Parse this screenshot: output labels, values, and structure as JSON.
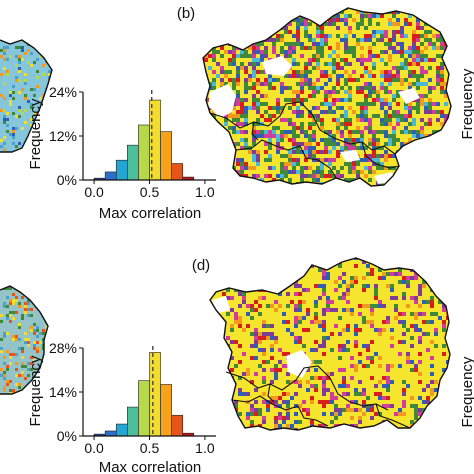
{
  "panels": [
    {
      "label": "(b)"
    },
    {
      "label": "(d)"
    }
  ],
  "edge_text": {
    "right_ylabel": "Frequency"
  },
  "chart_data": [
    {
      "type": "bar",
      "panel": "(b)",
      "xlabel": "Max correlation",
      "ylabel": "Frequency",
      "x_ticks": [
        "0.0",
        "0.5",
        "1.0"
      ],
      "y_ticks": [
        "0%",
        "12%",
        "24%"
      ],
      "xlim": [
        -0.1,
        1.1
      ],
      "ylim": [
        0,
        24
      ],
      "bin_width": 0.1,
      "bins": [
        0.0,
        0.1,
        0.2,
        0.3,
        0.4,
        0.5,
        0.6,
        0.7,
        0.8
      ],
      "values": [
        0.5,
        2.2,
        5.4,
        9.5,
        15.0,
        21.8,
        13.2,
        4.5,
        0.8
      ],
      "mean_line": 0.52,
      "grid": false,
      "colors": [
        "#2a3d8f",
        "#2a6fc9",
        "#23a6d4",
        "#4dbf9a",
        "#b5d94a",
        "#f2dd2f",
        "#f7a21b",
        "#e4541b",
        "#b8161b"
      ]
    },
    {
      "type": "bar",
      "panel": "(d)",
      "xlabel": "Max correlation",
      "ylabel": "Frequency",
      "x_ticks": [
        "0.0",
        "0.5",
        "1.0"
      ],
      "y_ticks": [
        "0%",
        "14%",
        "28%"
      ],
      "xlim": [
        -0.1,
        1.1
      ],
      "ylim": [
        0,
        28
      ],
      "bin_width": 0.1,
      "bins": [
        0.0,
        0.1,
        0.2,
        0.3,
        0.4,
        0.5,
        0.6,
        0.7,
        0.8
      ],
      "values": [
        0.6,
        1.6,
        3.8,
        9.2,
        17.6,
        26.6,
        16.4,
        6.6,
        0.9
      ],
      "mean_line": 0.53,
      "grid": false,
      "colors": [
        "#2a3d8f",
        "#2a6fc9",
        "#23a6d4",
        "#4dbf9a",
        "#b5d94a",
        "#f2dd2f",
        "#f7a21b",
        "#e4541b",
        "#b8161b"
      ]
    }
  ],
  "map_colors": {
    "left_map_b": "#86c6da",
    "left_map_d": "#94c4c7",
    "map_base_yellow": "#f5e52c",
    "map_green": "#3e8a3a",
    "map_purple": "#7d3b9a",
    "map_magenta": "#d23c9c",
    "map_red": "#d91e1e",
    "map_blue": "#2e5fb5",
    "map_orange": "#f39a1e",
    "map_cyan": "#4bb8d8"
  }
}
